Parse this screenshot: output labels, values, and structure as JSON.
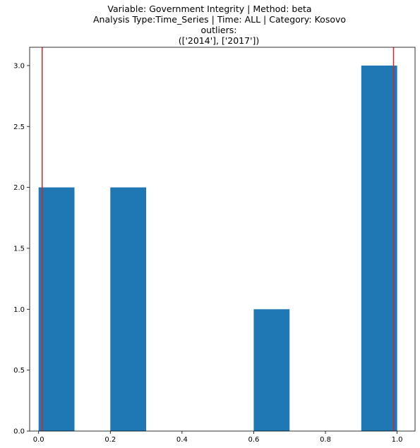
{
  "chart_data": {
    "type": "bar",
    "title_lines": [
      "Variable: Government Integrity | Method: beta",
      "Analysis Type:Time_Series | Time: ALL | Category: Kosovo",
      "outliers:",
      "(['2014'], ['2017'])"
    ],
    "xlabel": "",
    "ylabel": "",
    "xlim": [
      -0.025,
      1.05
    ],
    "ylim": [
      0,
      3.15
    ],
    "x_ticks": [
      0.0,
      0.2,
      0.4,
      0.6,
      0.8,
      1.0
    ],
    "x_tick_labels": [
      "0.0",
      "0.2",
      "0.4",
      "0.6",
      "0.8",
      "1.0"
    ],
    "y_ticks": [
      0.0,
      0.5,
      1.0,
      1.5,
      2.0,
      2.5,
      3.0
    ],
    "y_tick_labels": [
      "0.0",
      "0.5",
      "1.0",
      "1.5",
      "2.0",
      "2.5",
      "3.0"
    ],
    "bins": [
      {
        "x0": 0.0,
        "x1": 0.1,
        "value": 2
      },
      {
        "x0": 0.2,
        "x1": 0.3,
        "value": 2
      },
      {
        "x0": 0.6,
        "x1": 0.7,
        "value": 1
      },
      {
        "x0": 0.9,
        "x1": 1.0,
        "value": 3
      }
    ],
    "vlines": [
      0.01,
      0.99
    ],
    "bar_color": "#1f77b4",
    "vline_color": "#d62728",
    "grid": false,
    "legend": "none"
  }
}
